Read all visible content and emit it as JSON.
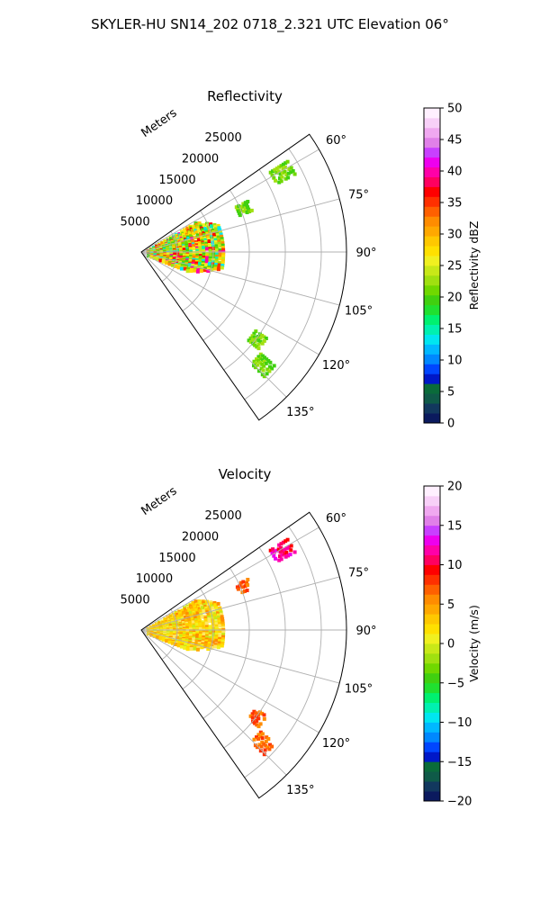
{
  "suptitle": "SKYLER-HU  SN14_202  0718_2.321 UTC Elevation 06°",
  "chart_data": [
    {
      "type": "heatmap",
      "projection": "polar-sector",
      "title": "Reflectivity",
      "theta_range_deg": [
        55,
        145
      ],
      "theta_ticks": [
        "60°",
        "75°",
        "90°",
        "105°",
        "120°",
        "135°"
      ],
      "theta_tick_values": [
        60,
        75,
        90,
        105,
        120,
        135
      ],
      "r_label": "Meters",
      "r_max": 28500,
      "r_ticks": [
        "5000",
        "10000",
        "15000",
        "20000",
        "25000"
      ],
      "r_tick_values": [
        5000,
        10000,
        15000,
        20000,
        25000
      ],
      "colorbar": {
        "label": "Reflectivity dBZ",
        "range": [
          0,
          50
        ],
        "ticks": [
          "0",
          "5",
          "10",
          "15",
          "20",
          "25",
          "30",
          "35",
          "40",
          "45",
          "50"
        ],
        "tick_values": [
          0,
          5,
          10,
          15,
          20,
          25,
          30,
          35,
          40,
          45,
          50
        ],
        "colors": [
          "#0b1a5e",
          "#12385e",
          "#0f5a48",
          "#0a6b3a",
          "#0018c8",
          "#0046ff",
          "#0088ff",
          "#00b8ff",
          "#00e6f0",
          "#00f0b0",
          "#00f070",
          "#20e030",
          "#40d010",
          "#70d800",
          "#a0e010",
          "#c8e818",
          "#f0f020",
          "#ffe000",
          "#ffc800",
          "#ffa800",
          "#ff8c00",
          "#ff6000",
          "#ff3000",
          "#ff0000",
          "#ff0060",
          "#ff00a8",
          "#ee00ee",
          "#c840ff",
          "#e080e8",
          "#f0a8f0",
          "#f8d0f8",
          "#fff0ff"
        ]
      },
      "field_note": "Echo field spanning about 90°–105° within ~12000 m, plus scattered echoes near 60° at ~22000 m and 135° at ~22000 m"
    },
    {
      "type": "heatmap",
      "projection": "polar-sector",
      "title": "Velocity",
      "theta_range_deg": [
        55,
        145
      ],
      "theta_ticks": [
        "60°",
        "75°",
        "90°",
        "105°",
        "120°",
        "135°"
      ],
      "theta_tick_values": [
        60,
        75,
        90,
        105,
        120,
        135
      ],
      "r_label": "Meters",
      "r_max": 28500,
      "r_ticks": [
        "5000",
        "10000",
        "15000",
        "20000",
        "25000"
      ],
      "r_tick_values": [
        5000,
        10000,
        15000,
        20000,
        25000
      ],
      "colorbar": {
        "label": "Velocity (m/s)",
        "range": [
          -20,
          20
        ],
        "ticks": [
          "−20",
          "−15",
          "−10",
          "−5",
          "0",
          "5",
          "10",
          "15",
          "20"
        ],
        "tick_values": [
          -20,
          -15,
          -10,
          -5,
          0,
          5,
          10,
          15,
          20
        ],
        "colors": [
          "#0b1a5e",
          "#12385e",
          "#0f5a48",
          "#0a6b3a",
          "#0018c8",
          "#0046ff",
          "#0088ff",
          "#00b8ff",
          "#00e6f0",
          "#00f0b0",
          "#00f070",
          "#20e030",
          "#40d010",
          "#70d800",
          "#a0e010",
          "#c8e818",
          "#f0f020",
          "#ffe000",
          "#ffc800",
          "#ffa800",
          "#ff8c00",
          "#ff6000",
          "#ff3000",
          "#ff0000",
          "#ff0060",
          "#ff00a8",
          "#ee00ee",
          "#c840ff",
          "#e080e8",
          "#f0a8f0",
          "#f8d0f8",
          "#fff0ff"
        ]
      },
      "field_note": "Mostly near-zero (yellow/orange) velocities, with red to magenta values around 60° at ~22000 m"
    }
  ]
}
